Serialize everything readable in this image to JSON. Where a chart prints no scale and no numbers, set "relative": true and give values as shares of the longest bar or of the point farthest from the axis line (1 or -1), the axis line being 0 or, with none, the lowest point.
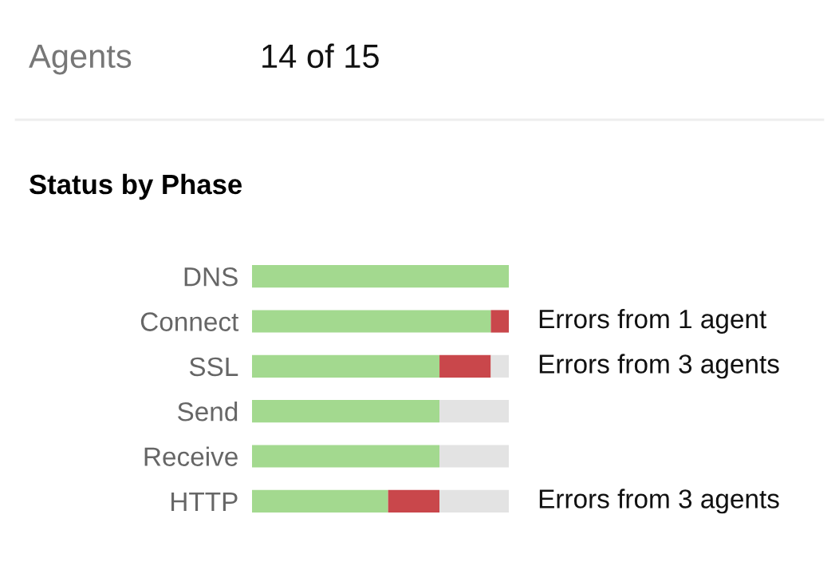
{
  "chart_data": {
    "type": "bar",
    "orientation": "horizontal",
    "stacked": true,
    "relative": true,
    "title": "Status by Phase",
    "categories": [
      "DNS",
      "Connect",
      "SSL",
      "Send",
      "Receive",
      "HTTP"
    ],
    "series": [
      {
        "color": "#a3d98f",
        "values": [
          1.0,
          0.93,
          0.73,
          0.73,
          0.73,
          0.53
        ]
      },
      {
        "color": "#c9474b",
        "values": [
          0,
          0.07,
          0.2,
          0,
          0,
          0.2
        ]
      },
      {
        "color": "#e3e3e3",
        "values": [
          0,
          0,
          0.07,
          0.27,
          0.27,
          0.27
        ]
      }
    ],
    "annotations": [
      "Agents",
      "14 of 15",
      "Errors from 1 agent",
      "Errors from 3 agents",
      "Errors from 3 agents"
    ],
    "grid": false,
    "legend": false
  }
}
